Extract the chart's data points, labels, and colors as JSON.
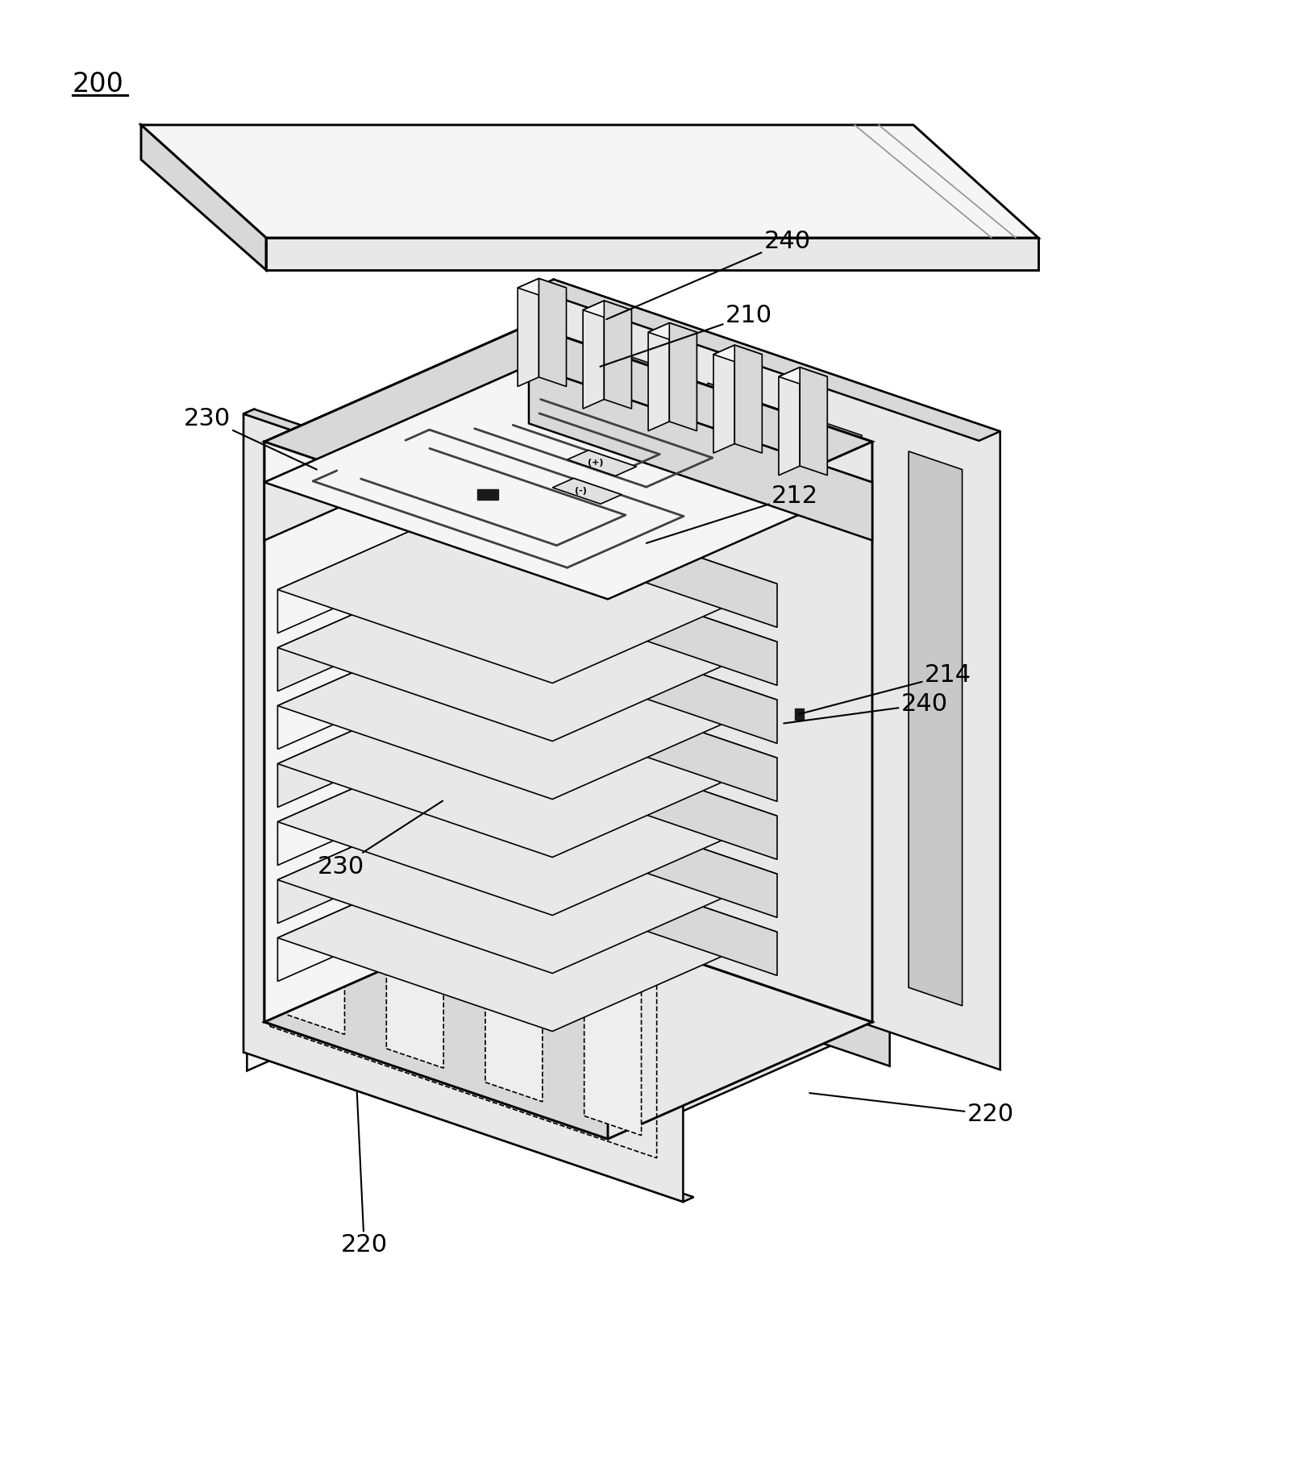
{
  "bg_color": "#ffffff",
  "lc": "#000000",
  "lw": 1.8,
  "lw_thin": 1.2,
  "fc_light": "#f5f5f5",
  "fc_mid": "#e8e8e8",
  "fc_dark": "#d8d8d8",
  "fc_darker": "#c8c8c8",
  "fc_white": "#ffffff",
  "label_200": "200",
  "label_210": "210",
  "label_212": "212",
  "label_214": "214",
  "label_220a": "220",
  "label_220b": "220",
  "label_230a": "230",
  "label_230b": "230",
  "label_240a": "240",
  "label_240b": "240",
  "fs": 22
}
